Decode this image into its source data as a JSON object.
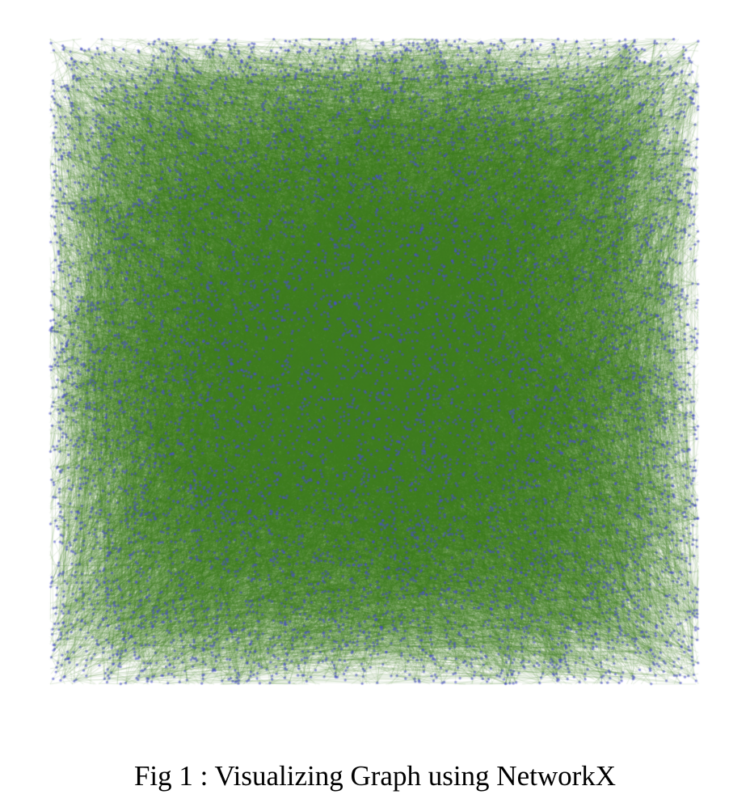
{
  "figure": {
    "caption": "Fig 1 : Visualizing Graph using NetworkX"
  },
  "graph": {
    "layout": "random",
    "edge_color": "#3a7d1e",
    "node_color": "#4b4fd1",
    "background": "#ffffff"
  }
}
